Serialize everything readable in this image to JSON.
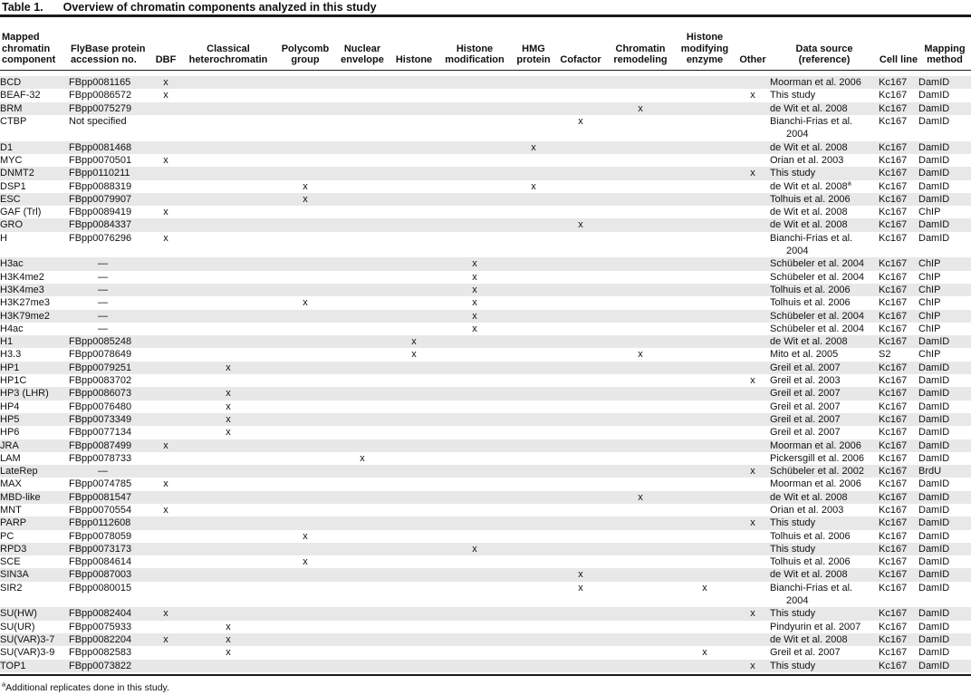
{
  "title": {
    "label": "Table 1.",
    "text": "Overview of chromatin components analyzed in this study"
  },
  "colors": {
    "stripe": "#e8e8e8",
    "rule": "#1a1a1a",
    "text": "#111111",
    "background": "#ffffff"
  },
  "table": {
    "mark_symbol": "x",
    "columns": [
      {
        "key": "component",
        "label": "Mapped chromatin component"
      },
      {
        "key": "accession",
        "label": "FlyBase protein accession no."
      },
      {
        "key": "dbf",
        "label": "DBF"
      },
      {
        "key": "classical_heterochromatin",
        "label": "Classical heterochromatin"
      },
      {
        "key": "polycomb_group",
        "label": "Polycomb group"
      },
      {
        "key": "nuclear_envelope",
        "label": "Nuclear envelope"
      },
      {
        "key": "histone",
        "label": "Histone"
      },
      {
        "key": "histone_modification",
        "label": "Histone modification"
      },
      {
        "key": "hmg_protein",
        "label": "HMG protein"
      },
      {
        "key": "cofactor",
        "label": "Cofactor"
      },
      {
        "key": "chromatin_remodeling",
        "label": "Chromatin remodeling"
      },
      {
        "key": "histone_modifying_enzyme",
        "label": "Histone modifying enzyme"
      },
      {
        "key": "other",
        "label": "Other"
      },
      {
        "key": "source",
        "label": "Data source (reference)"
      },
      {
        "key": "cell_line",
        "label": "Cell line"
      },
      {
        "key": "method",
        "label": "Mapping method"
      }
    ],
    "mark_columns": [
      "dbf",
      "classical_heterochromatin",
      "polycomb_group",
      "nuclear_envelope",
      "histone",
      "histone_modification",
      "hmg_protein",
      "cofactor",
      "chromatin_remodeling",
      "histone_modifying_enzyme",
      "other"
    ],
    "rows": [
      {
        "component": "BCD",
        "accession": "FBpp0081165",
        "marks": [
          "dbf"
        ],
        "source": "Moorman et al. 2006",
        "cell_line": "Kc167",
        "method": "DamID"
      },
      {
        "component": "BEAF-32",
        "accession": "FBpp0086572",
        "marks": [
          "dbf",
          "other"
        ],
        "source": "This study",
        "cell_line": "Kc167",
        "method": "DamID"
      },
      {
        "component": "BRM",
        "accession": "FBpp0075279",
        "marks": [
          "chromatin_remodeling"
        ],
        "source": "de Wit et al. 2008",
        "cell_line": "Kc167",
        "method": "DamID"
      },
      {
        "component": "CTBP",
        "accession": "Not specified",
        "marks": [
          "cofactor"
        ],
        "source": "Bianchi-Frias et al.",
        "source_line2": "2004",
        "cell_line": "Kc167",
        "method": "DamID"
      },
      {
        "component": "D1",
        "accession": "FBpp0081468",
        "marks": [
          "hmg_protein"
        ],
        "source": "de Wit et al. 2008",
        "cell_line": "Kc167",
        "method": "DamID"
      },
      {
        "component": "MYC",
        "accession": "FBpp0070501",
        "marks": [
          "dbf"
        ],
        "source": "Orian et al. 2003",
        "cell_line": "Kc167",
        "method": "DamID"
      },
      {
        "component": "DNMT2",
        "accession": "FBpp0110211",
        "marks": [
          "other"
        ],
        "source": "This study",
        "cell_line": "Kc167",
        "method": "DamID"
      },
      {
        "component": "DSP1",
        "accession": "FBpp0088319",
        "marks": [
          "polycomb_group",
          "hmg_protein"
        ],
        "source": "de Wit et al. 2008",
        "source_sup": "a",
        "cell_line": "Kc167",
        "method": "DamID"
      },
      {
        "component": "ESC",
        "accession": "FBpp0079907",
        "marks": [
          "polycomb_group"
        ],
        "source": "Tolhuis et al. 2006",
        "cell_line": "Kc167",
        "method": "DamID"
      },
      {
        "component": "GAF (Trl)",
        "accession": "FBpp0089419",
        "marks": [
          "dbf"
        ],
        "source": "de Wit et al. 2008",
        "cell_line": "Kc167",
        "method": "ChIP"
      },
      {
        "component": "GRO",
        "accession": "FBpp0084337",
        "marks": [
          "cofactor"
        ],
        "source": "de Wit et al. 2008",
        "cell_line": "Kc167",
        "method": "DamID"
      },
      {
        "component": "H",
        "accession": "FBpp0076296",
        "marks": [
          "dbf"
        ],
        "source": "Bianchi-Frias et al.",
        "source_line2": "2004",
        "cell_line": "Kc167",
        "method": "DamID"
      },
      {
        "component": "H3ac",
        "accession": "—",
        "marks": [
          "histone_modification"
        ],
        "source": "Schübeler et al. 2004",
        "cell_line": "Kc167",
        "method": "ChIP"
      },
      {
        "component": "H3K4me2",
        "accession": "—",
        "marks": [
          "histone_modification"
        ],
        "source": "Schübeler et al. 2004",
        "cell_line": "Kc167",
        "method": "ChIP"
      },
      {
        "component": "H3K4me3",
        "accession": "—",
        "marks": [
          "histone_modification"
        ],
        "source": "Tolhuis et al. 2006",
        "cell_line": "Kc167",
        "method": "ChIP"
      },
      {
        "component": "H3K27me3",
        "accession": "—",
        "marks": [
          "polycomb_group",
          "histone_modification"
        ],
        "source": "Tolhuis et al. 2006",
        "cell_line": "Kc167",
        "method": "ChIP"
      },
      {
        "component": "H3K79me2",
        "accession": "—",
        "marks": [
          "histone_modification"
        ],
        "source": "Schübeler et al. 2004",
        "cell_line": "Kc167",
        "method": "ChIP"
      },
      {
        "component": "H4ac",
        "accession": "—",
        "marks": [
          "histone_modification"
        ],
        "source": "Schübeler et al. 2004",
        "cell_line": "Kc167",
        "method": "ChIP"
      },
      {
        "component": "H1",
        "accession": "FBpp0085248",
        "marks": [
          "histone"
        ],
        "source": "de Wit et al. 2008",
        "cell_line": "Kc167",
        "method": "DamID"
      },
      {
        "component": "H3.3",
        "accession": "FBpp0078649",
        "marks": [
          "histone",
          "chromatin_remodeling"
        ],
        "source": "Mito et al. 2005",
        "cell_line": "S2",
        "method": "ChIP"
      },
      {
        "component": "HP1",
        "accession": "FBpp0079251",
        "marks": [
          "classical_heterochromatin"
        ],
        "source": "Greil et al. 2007",
        "cell_line": "Kc167",
        "method": "DamID"
      },
      {
        "component": "HP1C",
        "accession": "FBpp0083702",
        "marks": [
          "other"
        ],
        "source": "Greil et al. 2003",
        "cell_line": "Kc167",
        "method": "DamID"
      },
      {
        "component": "HP3 (LHR)",
        "accession": "FBpp0086073",
        "marks": [
          "classical_heterochromatin"
        ],
        "source": "Greil et al. 2007",
        "cell_line": "Kc167",
        "method": "DamID"
      },
      {
        "component": "HP4",
        "accession": "FBpp0076480",
        "marks": [
          "classical_heterochromatin"
        ],
        "source": "Greil et al. 2007",
        "cell_line": "Kc167",
        "method": "DamID"
      },
      {
        "component": "HP5",
        "accession": "FBpp0073349",
        "marks": [
          "classical_heterochromatin"
        ],
        "source": "Greil et al. 2007",
        "cell_line": "Kc167",
        "method": "DamID"
      },
      {
        "component": "HP6",
        "accession": "FBpp0077134",
        "marks": [
          "classical_heterochromatin"
        ],
        "source": "Greil et al. 2007",
        "cell_line": "Kc167",
        "method": "DamID"
      },
      {
        "component": "JRA",
        "accession": "FBpp0087499",
        "marks": [
          "dbf"
        ],
        "source": "Moorman et al. 2006",
        "cell_line": "Kc167",
        "method": "DamID"
      },
      {
        "component": "LAM",
        "accession": "FBpp0078733",
        "marks": [
          "nuclear_envelope"
        ],
        "source": "Pickersgill et al. 2006",
        "cell_line": "Kc167",
        "method": "DamID"
      },
      {
        "component": "LateRep",
        "accession": "—",
        "marks": [
          "other"
        ],
        "source": "Schübeler et al. 2002",
        "cell_line": "Kc167",
        "method": "BrdU"
      },
      {
        "component": "MAX",
        "accession": "FBpp0074785",
        "marks": [
          "dbf"
        ],
        "source": "Moorman et al. 2006",
        "cell_line": "Kc167",
        "method": "DamID"
      },
      {
        "component": "MBD-like",
        "accession": "FBpp0081547",
        "marks": [
          "chromatin_remodeling"
        ],
        "source": "de Wit et al. 2008",
        "cell_line": "Kc167",
        "method": "DamID"
      },
      {
        "component": "MNT",
        "accession": "FBpp0070554",
        "marks": [
          "dbf"
        ],
        "source": "Orian et al. 2003",
        "cell_line": "Kc167",
        "method": "DamID"
      },
      {
        "component": "PARP",
        "accession": "FBpp0112608",
        "marks": [
          "other"
        ],
        "source": "This study",
        "cell_line": "Kc167",
        "method": "DamID"
      },
      {
        "component": "PC",
        "accession": "FBpp0078059",
        "marks": [
          "polycomb_group"
        ],
        "source": "Tolhuis et al. 2006",
        "cell_line": "Kc167",
        "method": "DamID"
      },
      {
        "component": "RPD3",
        "accession": "FBpp0073173",
        "marks": [
          "histone_modification"
        ],
        "source": "This study",
        "cell_line": "Kc167",
        "method": "DamID"
      },
      {
        "component": "SCE",
        "accession": "FBpp0084614",
        "marks": [
          "polycomb_group"
        ],
        "source": "Tolhuis et al. 2006",
        "cell_line": "Kc167",
        "method": "DamID"
      },
      {
        "component": "SIN3A",
        "accession": "FBpp0087003",
        "marks": [
          "cofactor"
        ],
        "source": "de Wit et al. 2008",
        "cell_line": "Kc167",
        "method": "DamID"
      },
      {
        "component": "SIR2",
        "accession": "FBpp0080015",
        "marks": [
          "cofactor",
          "histone_modifying_enzyme"
        ],
        "source": "Bianchi-Frias et al.",
        "source_line2": "2004",
        "cell_line": "Kc167",
        "method": "DamID"
      },
      {
        "component": "SU(HW)",
        "accession": "FBpp0082404",
        "marks": [
          "dbf",
          "other"
        ],
        "source": "This study",
        "cell_line": "Kc167",
        "method": "DamID"
      },
      {
        "component": "SU(UR)",
        "accession": "FBpp0075933",
        "marks": [
          "classical_heterochromatin"
        ],
        "source": "Pindyurin et al. 2007",
        "cell_line": "Kc167",
        "method": "DamID"
      },
      {
        "component": "SU(VAR)3-7",
        "accession": "FBpp0082204",
        "marks": [
          "dbf",
          "classical_heterochromatin"
        ],
        "source": "de Wit et al. 2008",
        "cell_line": "Kc167",
        "method": "DamID"
      },
      {
        "component": "SU(VAR)3-9",
        "accession": "FBpp0082583",
        "marks": [
          "classical_heterochromatin",
          "histone_modifying_enzyme"
        ],
        "source": "Greil et al. 2007",
        "cell_line": "Kc167",
        "method": "DamID"
      },
      {
        "component": "TOP1",
        "accession": "FBpp0073822",
        "marks": [
          "other"
        ],
        "source": "This study",
        "cell_line": "Kc167",
        "method": "DamID"
      }
    ]
  },
  "footnote": {
    "sup": "a",
    "text": "Additional replicates done in this study."
  }
}
